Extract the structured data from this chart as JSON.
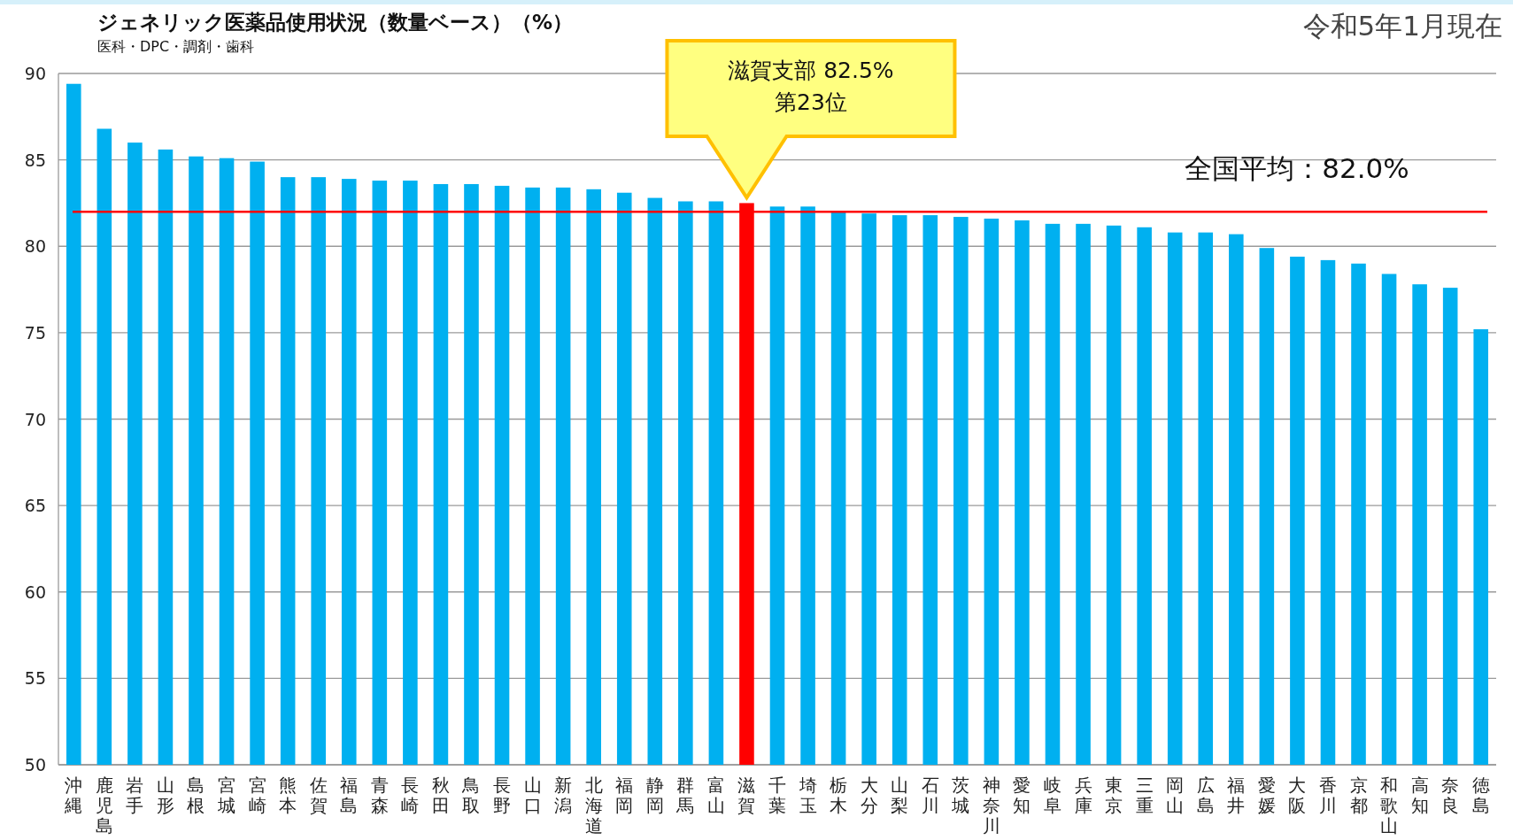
{
  "chart_data": {
    "type": "bar",
    "title": "ジェネリック医薬品使用状況（数量ベース）（%）",
    "subtitle": "医科・DPC・調剤・歯科",
    "annotations": [
      "令和5年1月現在",
      "滋賀支部  82.5%\n第23位"
    ],
    "categories": [
      "沖縄",
      "鹿児島",
      "岩手",
      "山形",
      "島根",
      "宮城",
      "宮崎",
      "熊本",
      "佐賀",
      "福島",
      "青森",
      "長崎",
      "秋田",
      "鳥取",
      "長野",
      "山口",
      "新潟",
      "北海道",
      "福岡",
      "静岡",
      "群馬",
      "富山",
      "滋賀",
      "千葉",
      "埼玉",
      "栃木",
      "大分",
      "山梨",
      "石川",
      "茨城",
      "神奈川",
      "愛知",
      "岐阜",
      "兵庫",
      "東京",
      "三重",
      "岡山",
      "広島",
      "福井",
      "愛媛",
      "大阪",
      "香川",
      "京都",
      "和歌山",
      "高知",
      "奈良",
      "徳島"
    ],
    "values": [
      89.4,
      86.8,
      86.0,
      85.6,
      85.2,
      85.1,
      84.9,
      84.0,
      84.0,
      83.9,
      83.8,
      83.8,
      83.6,
      83.6,
      83.5,
      83.4,
      83.4,
      83.3,
      83.1,
      82.8,
      82.6,
      82.6,
      82.5,
      82.3,
      82.3,
      82.0,
      81.9,
      81.8,
      81.8,
      81.7,
      81.6,
      81.5,
      81.3,
      81.3,
      81.2,
      81.1,
      80.8,
      80.8,
      80.7,
      79.9,
      79.4,
      79.2,
      79.0,
      78.4,
      77.8,
      77.6,
      75.2
    ],
    "colors": [
      "#00b0f0",
      "#00b0f0",
      "#00b0f0",
      "#00b0f0",
      "#00b0f0",
      "#00b0f0",
      "#00b0f0",
      "#00b0f0",
      "#00b0f0",
      "#00b0f0",
      "#00b0f0",
      "#00b0f0",
      "#00b0f0",
      "#00b0f0",
      "#00b0f0",
      "#00b0f0",
      "#00b0f0",
      "#00b0f0",
      "#00b0f0",
      "#00b0f0",
      "#00b0f0",
      "#00b0f0",
      "#ff0000",
      "#00b0f0",
      "#00b0f0",
      "#00b0f0",
      "#00b0f0",
      "#00b0f0",
      "#00b0f0",
      "#00b0f0",
      "#00b0f0",
      "#00b0f0",
      "#00b0f0",
      "#00b0f0",
      "#00b0f0",
      "#00b0f0",
      "#00b0f0",
      "#00b0f0",
      "#00b0f0",
      "#00b0f0",
      "#00b0f0",
      "#00b0f0",
      "#00b0f0",
      "#00b0f0",
      "#00b0f0",
      "#00b0f0",
      "#00b0f0"
    ],
    "ylim": [
      50,
      90
    ],
    "yticks": [
      50,
      55,
      60,
      65,
      70,
      75,
      80,
      85,
      90
    ],
    "grid": "y",
    "ref_lines": [
      {
        "axis": "y",
        "value": 82.0,
        "label": "全国平均：82.0%",
        "color": "#ff0000"
      }
    ]
  }
}
